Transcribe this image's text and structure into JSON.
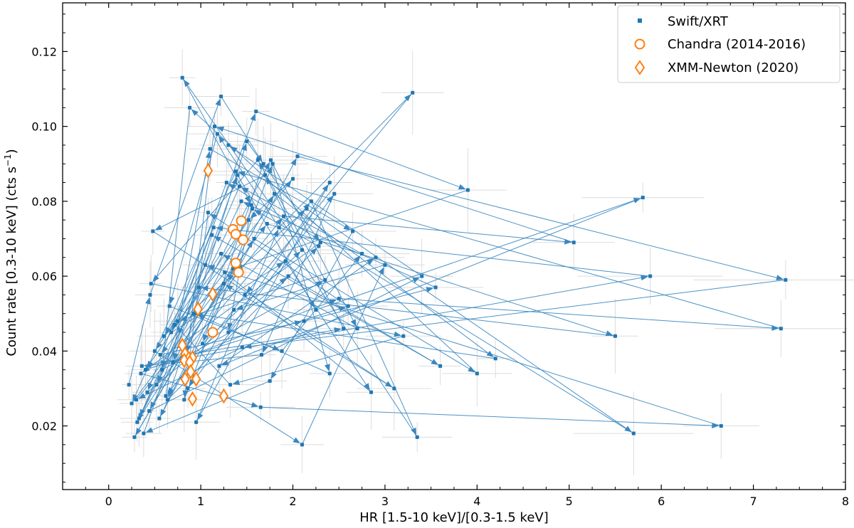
{
  "chart_data": {
    "type": "scatter",
    "title": "",
    "xlabel": "HR [1.5-10 keV]/[0.3-1.5 keV]",
    "ylabel_main": "Count rate [0.3-10 keV] (cts s",
    "ylabel_sup": "−1",
    "ylabel_end": ")",
    "xlim": [
      -0.5,
      8.0
    ],
    "ylim": [
      0.003,
      0.133
    ],
    "xticks": [
      0,
      1,
      2,
      3,
      4,
      5,
      6,
      7,
      8
    ],
    "yticks": [
      0.02,
      0.04,
      0.06,
      0.08,
      0.1,
      0.12
    ],
    "ytick_labels": [
      "0.02",
      "0.04",
      "0.06",
      "0.08",
      "0.10",
      "0.12"
    ],
    "legend_position": "top-right",
    "colors": {
      "swift": "#1f77b4",
      "chandra": "#ff7f0e",
      "xmm": "#ff7f0e",
      "errorbar": "#d9d9d9"
    },
    "series": [
      {
        "name": "Swift/XRT",
        "marker": "square-small",
        "connected": "arrows",
        "x": [
          0.22,
          0.45,
          1.22,
          1.68,
          1.02,
          2.1,
          0.8,
          1.55,
          1.3,
          2.4,
          0.95,
          1.85,
          3.3,
          1.48,
          0.62,
          1.1,
          2.65,
          1.75,
          0.38,
          1.4,
          2.25,
          5.8,
          1.2,
          2.9,
          0.75,
          1.6,
          3.9,
          1.35,
          0.55,
          2.05,
          7.35,
          1.45,
          0.3,
          1.9,
          5.05,
          1.15,
          0.85,
          2.55,
          1.7,
          0.48,
          3.1,
          1.25,
          0.28,
          1.8,
          4.2,
          0.92,
          1.5,
          2.3,
          0.35,
          1.65,
          6.65,
          1.05,
          0.6,
          2.15,
          5.7,
          1.28,
          0.42,
          1.95,
          3.6,
          1.12,
          0.7,
          2.5,
          7.3,
          1.38,
          0.25,
          1.72,
          5.5,
          0.98,
          0.52,
          2.2,
          3.35,
          1.18,
          0.66,
          1.88,
          2.75,
          1.42,
          0.33,
          1.58,
          4.0,
          0.88,
          0.58,
          2.35,
          1.62,
          0.46,
          3.2,
          1.32,
          0.72,
          2.0,
          1.52,
          0.4,
          2.6,
          1.08,
          0.82,
          1.78,
          2.7,
          1.22,
          0.5,
          2.1,
          3.0,
          1.36,
          0.86,
          2.45,
          1.66,
          0.36,
          5.88,
          1.14,
          0.68,
          1.92,
          2.85,
          1.26,
          0.56,
          2.12,
          3.55,
          1.44,
          0.31,
          1.76,
          2.4,
          0.94,
          0.64,
          2.28,
          1.56,
          0.44,
          3.4,
          1.3
        ],
        "y": [
          0.031,
          0.055,
          0.108,
          0.09,
          0.042,
          0.067,
          0.113,
          0.079,
          0.045,
          0.085,
          0.021,
          0.073,
          0.109,
          0.055,
          0.028,
          0.094,
          0.072,
          0.032,
          0.018,
          0.087,
          0.051,
          0.081,
          0.036,
          0.065,
          0.048,
          0.104,
          0.083,
          0.062,
          0.022,
          0.092,
          0.059,
          0.041,
          0.027,
          0.076,
          0.069,
          0.1,
          0.039,
          0.046,
          0.087,
          0.072,
          0.03,
          0.058,
          0.017,
          0.082,
          0.038,
          0.05,
          0.096,
          0.069,
          0.034,
          0.025,
          0.02,
          0.063,
          0.044,
          0.078,
          0.018,
          0.085,
          0.029,
          0.06,
          0.036,
          0.071,
          0.037,
          0.054,
          0.046,
          0.088,
          0.026,
          0.074,
          0.044,
          0.057,
          0.031,
          0.08,
          0.017,
          0.098,
          0.052,
          0.04,
          0.066,
          0.084,
          0.022,
          0.07,
          0.034,
          0.105,
          0.035,
          0.059,
          0.091,
          0.058,
          0.044,
          0.031,
          0.047,
          0.086,
          0.075,
          0.035,
          0.052,
          0.077,
          0.027,
          0.09,
          0.046,
          0.066,
          0.04,
          0.015,
          0.063,
          0.051,
          0.03,
          0.082,
          0.039,
          0.036,
          0.06,
          0.073,
          0.045,
          0.064,
          0.029,
          0.061,
          0.039,
          0.048,
          0.057,
          0.08,
          0.021,
          0.091,
          0.034,
          0.05,
          0.027,
          0.068,
          0.078,
          0.024,
          0.06,
          0.095
        ]
      },
      {
        "name": "Chandra (2014-2016)",
        "marker": "circle-open",
        "x": [
          1.44,
          1.35,
          1.38,
          1.46,
          1.38,
          1.41,
          1.13
        ],
        "y": [
          0.0748,
          0.0725,
          0.0712,
          0.0697,
          0.0635,
          0.061,
          0.045
        ]
      },
      {
        "name": "XMM-Newton (2020)",
        "marker": "diamond-open",
        "x": [
          1.08,
          1.13,
          0.97,
          0.8,
          0.83,
          0.87,
          0.91,
          0.82,
          0.88,
          0.95,
          0.83,
          0.89,
          0.91,
          1.25
        ],
        "y": [
          0.0882,
          0.0552,
          0.0512,
          0.0415,
          0.0392,
          0.038,
          0.0382,
          0.0375,
          0.037,
          0.0325,
          0.0325,
          0.0345,
          0.0272,
          0.028
        ]
      }
    ]
  }
}
